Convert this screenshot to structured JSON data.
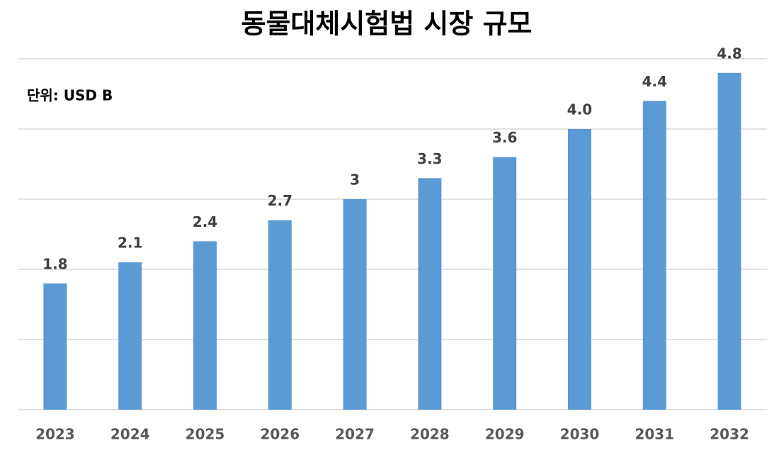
{
  "chart_data": {
    "type": "bar",
    "title": "동물대체시험법 시장 규모",
    "subtitle": "단위: USD B",
    "categories": [
      "2023",
      "2024",
      "2025",
      "2026",
      "2027",
      "2028",
      "2029",
      "2030",
      "2031",
      "2032"
    ],
    "values": [
      1.8,
      2.1,
      2.4,
      2.7,
      3,
      3.3,
      3.6,
      4.0,
      4.4,
      4.8
    ],
    "value_labels": [
      "1.8",
      "2.1",
      "2.4",
      "2.7",
      "3",
      "3.3",
      "3.6",
      "4.0",
      "4.4",
      "4.8"
    ],
    "color": "#5b9bd5",
    "ylim": [
      0,
      5
    ],
    "yticks": [
      0,
      1,
      2,
      3,
      4,
      5
    ],
    "grid": true
  }
}
